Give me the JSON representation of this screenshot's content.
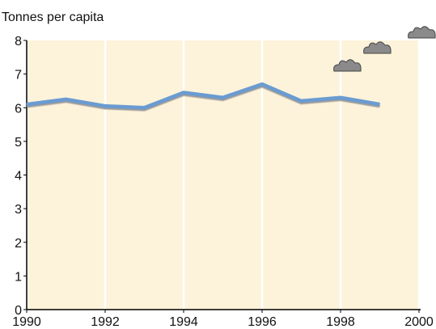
{
  "chart_data": {
    "type": "line",
    "y_label": "Tonnes per capita",
    "x": [
      1990,
      1991,
      1992,
      1993,
      1994,
      1995,
      1996,
      1997,
      1998,
      1999
    ],
    "values": [
      6.1,
      6.25,
      6.05,
      6.0,
      6.45,
      6.3,
      6.7,
      6.2,
      6.3,
      6.1
    ],
    "color": "#6b9bd2",
    "xlim": [
      1990,
      2000
    ],
    "xticks": [
      1990,
      1992,
      1994,
      1996,
      1998,
      2000
    ],
    "ylim": [
      0,
      8
    ],
    "yticks": [
      0,
      1,
      2,
      3,
      4,
      5,
      6,
      7,
      8
    ],
    "grid": true
  }
}
